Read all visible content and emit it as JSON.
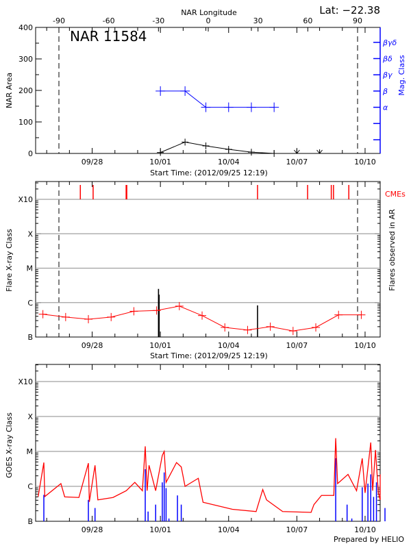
{
  "colors": {
    "axis": "#000000",
    "grid": "#a0a0a0",
    "mag": "#0000ff",
    "flare": "#ff0000",
    "cme": "#ff0000",
    "goes_long": "#ff0000",
    "goes_short": "#0000ff"
  },
  "header": {
    "lat": "Lat: −22.38",
    "footer": "Prepared by HELIO"
  },
  "chart_data": [
    {
      "type": "line",
      "title": "NAR 11584",
      "top_axis_label": "NAR Longitude",
      "top_ticks": [
        "-90",
        "-60",
        "-30",
        "0",
        "30",
        "60",
        "90"
      ],
      "top_tick_values": [
        -90,
        -60,
        -30,
        0,
        30,
        60,
        90
      ],
      "xlabel": "Start Time: (2012/09/25 12:19)",
      "x_start": "09/25 12:19",
      "x_tick_labels": [
        "09/28",
        "10/01",
        "10/04",
        "10/07",
        "10/10"
      ],
      "ylabel": "NAR Area",
      "ylim": [
        0,
        400
      ],
      "y_ticks": [
        "0",
        "100",
        "200",
        "300",
        "400"
      ],
      "limb_markers_longitude": [
        -90,
        90
      ],
      "y2label": "Mag. Class",
      "y2_ticks": [
        "α",
        "β",
        "βγ",
        "βδ",
        "βγδ"
      ],
      "series": [
        {
          "role": "area",
          "x": [
            "10/01 00:00",
            "10/02 02:00",
            "10/03 00:00",
            "10/04 00:00",
            "10/05 00:00",
            "10/06 00:00"
          ],
          "values": [
            3,
            36,
            24,
            13,
            4,
            0
          ]
        },
        {
          "role": "area-missing",
          "x": [
            "10/07 00:00",
            "10/08 00:00"
          ],
          "values": [
            0,
            0
          ]
        },
        {
          "role": "mag-class",
          "x": [
            "10/01 00:00",
            "10/02 02:00",
            "10/03 00:00",
            "10/04 00:00",
            "10/05 00:00",
            "10/06 00:00"
          ],
          "values": [
            "β",
            "β",
            "α",
            "α",
            "α",
            "α"
          ]
        }
      ]
    },
    {
      "type": "line",
      "xlabel": "Start Time: (2012/09/25 12:19)",
      "x_tick_labels": [
        "09/28",
        "10/01",
        "10/04",
        "10/07",
        "10/10"
      ],
      "ylabel": "Flare X-ray Class",
      "y2label": "Flares observed in AR",
      "y_ticks": [
        "B",
        "C",
        "M",
        "X",
        "X10"
      ],
      "cme_label": "CMEs",
      "cmes": [
        "09/27 11:30",
        "09/28 01:00",
        "09/29 11:50",
        "09/29 12:30",
        "10/05 06:30",
        "10/07 11:20",
        "10/08 12:20",
        "10/08 14:40",
        "10/09 06:50"
      ],
      "flares": [
        {
          "t": "09/30 22:00",
          "class": "C2.5"
        },
        {
          "t": "09/30 22:40",
          "class": "C1.7"
        },
        {
          "t": "10/05 06:30",
          "class": "B8.3"
        }
      ],
      "series": [
        {
          "role": "background",
          "x": [
            "09/25 20:00",
            "09/26 20:00",
            "09/27 20:00",
            "09/28 20:00",
            "09/29 20:00",
            "09/30 20:00",
            "10/01 20:00",
            "10/02 20:00",
            "10/03 20:00",
            "10/04 20:00",
            "10/05 20:00",
            "10/06 20:00",
            "10/07 20:00",
            "10/08 20:00",
            "10/09 20:00"
          ],
          "values": [
            "B4.6",
            "B3.8",
            "B3.3",
            "B3.8",
            "B5.6",
            "B5.9",
            "B7.9",
            "B4.2",
            "B1.9",
            "B1.6",
            "B2.0",
            "B1.5",
            "B1.9",
            "B4.4",
            "B4.4"
          ]
        }
      ]
    },
    {
      "type": "line",
      "ylabel": "GOES X-ray Class",
      "x_tick_labels": [
        "09/28",
        "10/01",
        "10/04",
        "10/07",
        "10/10"
      ],
      "y_ticks": [
        "B",
        "C",
        "M",
        "X",
        "X10"
      ],
      "series": [
        {
          "role": "long",
          "x": [
            "09/25 15:00",
            "09/25 21:00",
            "09/25 22:00",
            "09/26 15:00",
            "09/26 19:00",
            "09/27 10:00",
            "09/27 20:00",
            "09/27 21:00",
            "09/28 03:00",
            "09/28 06:00",
            "09/28 22:00",
            "09/29 12:00",
            "09/29 21:00",
            "09/30 05:00",
            "09/30 08:00",
            "09/30 10:00",
            "09/30 12:00",
            "09/30 19:00",
            "10/01 02:00",
            "10/01 04:00",
            "10/01 06:00",
            "10/01 17:00",
            "10/01 22:00",
            "10/02 02:00",
            "10/02 16:00",
            "10/02 21:00",
            "10/04 04:00",
            "10/05 05:00",
            "10/05 12:00",
            "10/05 16:00",
            "10/06 09:00",
            "10/07 15:00",
            "10/07 18:00",
            "10/08 02:00",
            "10/08 15:00",
            "10/08 17:00",
            "10/08 19:00",
            "10/09 06:00",
            "10/09 15:00",
            "10/09 21:00",
            "10/10 00:00",
            "10/10 06:00",
            "10/10 08:00",
            "10/10 11:00",
            "10/10 14:00",
            "10/10 18:00",
            "10/10 21:00"
          ],
          "values": [
            "B5.1",
            "C4.8",
            "B5.1",
            "C1.2",
            "B5.0",
            "B4.8",
            "C4.6",
            "B3.6",
            "C4.0",
            "B4.1",
            "B4.8",
            "B7.5",
            "C1.3",
            "B7.5",
            "M1.4",
            "B7.5",
            "C4.0",
            "B7.5",
            "C7.7",
            "M1.0",
            "C1.3",
            "C4.8",
            "C3.6",
            "C1.0",
            "C1.7",
            "B3.5",
            "B2.2",
            "B1.9",
            "B8.1",
            "B4.1",
            "B1.9",
            "B1.8",
            "B3.0",
            "B5.5",
            "B5.5",
            "M2.4",
            "C1.2",
            "C2.2",
            "B7.5",
            "C6.3",
            "B6.5",
            "M1.8",
            "B7.5",
            "M1.1",
            "B6.5",
            "B4.1",
            "C2.2"
          ]
        },
        {
          "role": "short",
          "x": [
            "09/25 21:00",
            "09/27 20:00",
            "09/28 03:00",
            "09/30 08:00",
            "09/30 11:00",
            "09/30 19:00",
            "10/01 02:00",
            "10/01 04:00",
            "10/01 06:00",
            "10/01 09:00",
            "10/01 18:00",
            "10/01 22:00",
            "10/08 17:00",
            "10/09 05:00",
            "10/09 10:00",
            "10/09 21:00",
            "10/10 03:00",
            "10/10 06:00",
            "10/10 09:00",
            "10/10 12:00",
            "10/10 21:00"
          ],
          "values": [
            "B5.7",
            "B4.1",
            "B2.4",
            "C3.1",
            "B1.9",
            "B3.0",
            "C1.3",
            "C2.5",
            "B8.9",
            "B1.2",
            "B5.5",
            "B3.0",
            "C6.4",
            "B3.0",
            "B1.2",
            "B9.4",
            "C1.2",
            "C2.2",
            "B5.0",
            "C1.3",
            "B2.4"
          ]
        }
      ]
    }
  ]
}
